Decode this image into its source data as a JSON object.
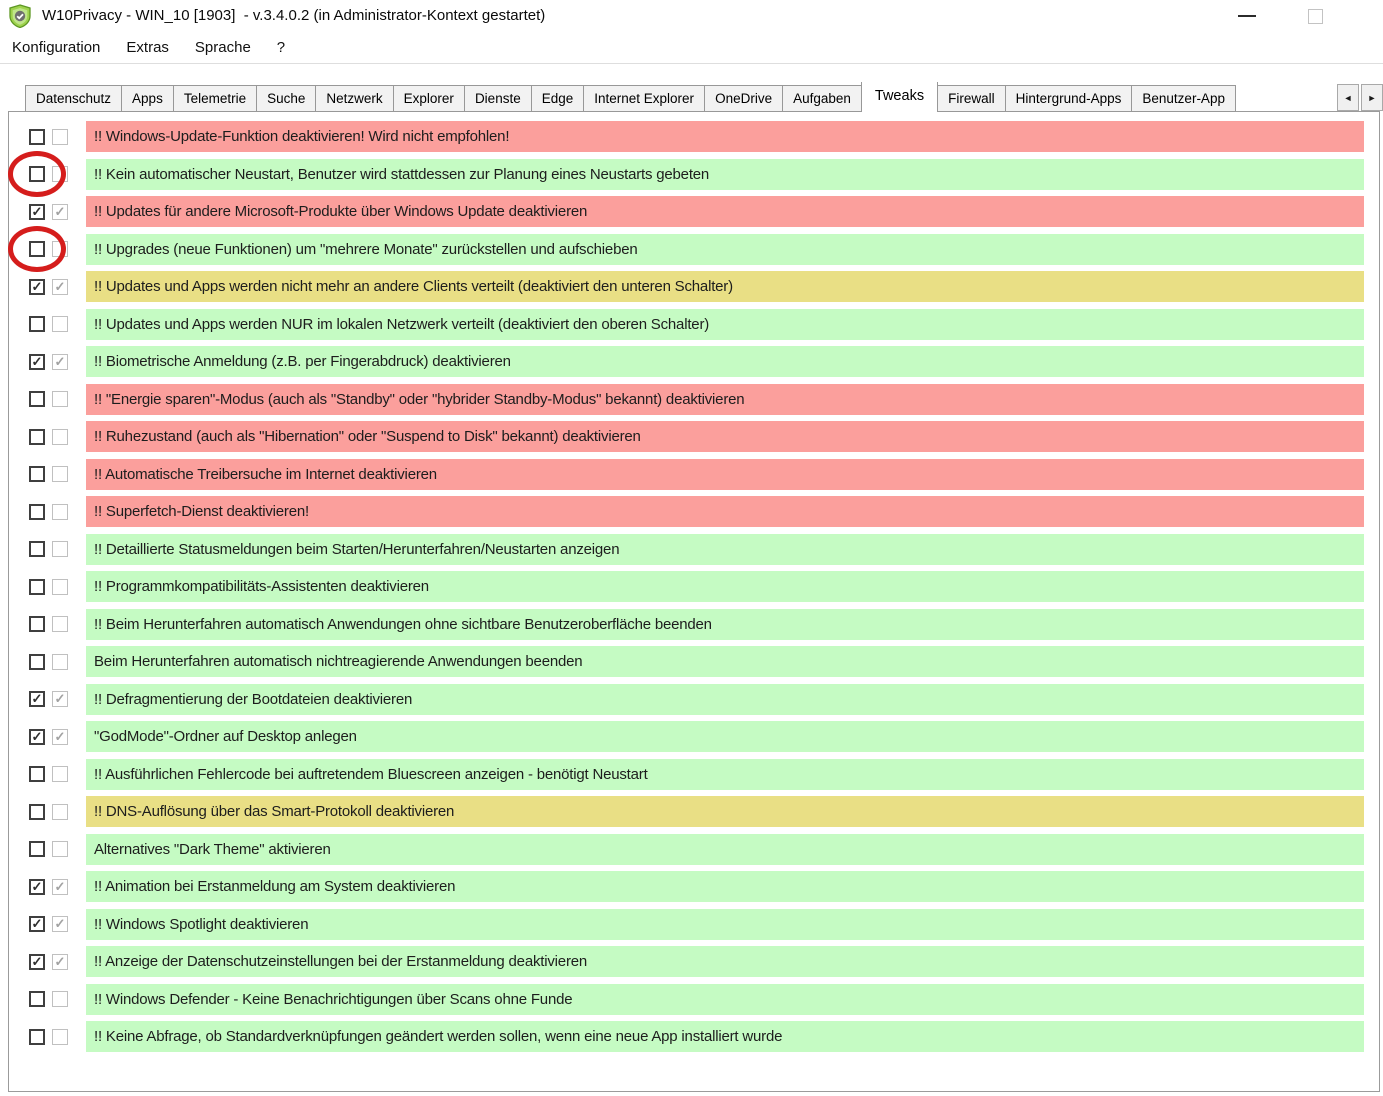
{
  "window": {
    "title": "W10Privacy - WIN_10 [1903]  - v.3.4.0.2 (in Administrator-Kontext gestartet)"
  },
  "menu": {
    "items": [
      "Konfiguration",
      "Extras",
      "Sprache",
      "?"
    ]
  },
  "tabs": {
    "items": [
      "Datenschutz",
      "Apps",
      "Telemetrie",
      "Suche",
      "Netzwerk",
      "Explorer",
      "Dienste",
      "Edge",
      "Internet Explorer",
      "OneDrive",
      "Aufgaben",
      "Tweaks",
      "Firewall",
      "Hintergrund-Apps",
      "Benutzer-App"
    ],
    "selected": "Tweaks",
    "scroll_left_glyph": "◄",
    "scroll_right_glyph": "►"
  },
  "colors": {
    "row_red": "#fb9f9c",
    "row_green": "#c5fbc3",
    "row_yellow": "#e9df85",
    "annotation_circle": "#d51d1c"
  },
  "rows": [
    {
      "label": "!! Windows-Update-Funktion deaktivieren! Wird nicht empfohlen!",
      "color": "red",
      "checked": false,
      "circled": false
    },
    {
      "label": "!! Kein automatischer Neustart, Benutzer wird stattdessen zur Planung eines Neustarts gebeten",
      "color": "green",
      "checked": false,
      "circled": true
    },
    {
      "label": "!! Updates für andere Microsoft-Produkte über Windows Update deaktivieren",
      "color": "red",
      "checked": true,
      "circled": false
    },
    {
      "label": "!! Upgrades (neue Funktionen) um \"mehrere Monate\" zurückstellen und aufschieben",
      "color": "green",
      "checked": false,
      "circled": true
    },
    {
      "label": "!! Updates und Apps werden nicht mehr an andere Clients verteilt (deaktiviert den unteren Schalter)",
      "color": "yellow",
      "checked": true,
      "circled": false
    },
    {
      "label": "!! Updates und Apps werden NUR im lokalen Netzwerk verteilt (deaktiviert den oberen Schalter)",
      "color": "green",
      "checked": false,
      "circled": false
    },
    {
      "label": "!! Biometrische Anmeldung (z.B. per Fingerabdruck) deaktivieren",
      "color": "green",
      "checked": true,
      "circled": false
    },
    {
      "label": "!! \"Energie sparen\"-Modus (auch als \"Standby\" oder \"hybrider Standby-Modus\" bekannt) deaktivieren",
      "color": "red",
      "checked": false,
      "circled": false
    },
    {
      "label": "!! Ruhezustand (auch als \"Hibernation\" oder \"Suspend to Disk\" bekannt) deaktivieren",
      "color": "red",
      "checked": false,
      "circled": false
    },
    {
      "label": "!! Automatische Treibersuche im Internet deaktivieren",
      "color": "red",
      "checked": false,
      "circled": false
    },
    {
      "label": "!! Superfetch-Dienst deaktivieren!",
      "color": "red",
      "checked": false,
      "circled": false
    },
    {
      "label": "!! Detaillierte Statusmeldungen beim Starten/Herunterfahren/Neustarten anzeigen",
      "color": "green",
      "checked": false,
      "circled": false
    },
    {
      "label": "!! Programmkompatibilitäts-Assistenten deaktivieren",
      "color": "green",
      "checked": false,
      "circled": false
    },
    {
      "label": "!! Beim Herunterfahren automatisch Anwendungen ohne sichtbare Benutzeroberfläche beenden",
      "color": "green",
      "checked": false,
      "circled": false
    },
    {
      "label": "Beim Herunterfahren automatisch nichtreagierende Anwendungen beenden",
      "color": "green",
      "checked": false,
      "circled": false
    },
    {
      "label": "!! Defragmentierung der Bootdateien deaktivieren",
      "color": "green",
      "checked": true,
      "circled": false
    },
    {
      "label": "\"GodMode\"-Ordner auf Desktop anlegen",
      "color": "green",
      "checked": true,
      "circled": false
    },
    {
      "label": "!! Ausführlichen Fehlercode bei auftretendem Bluescreen anzeigen - benötigt Neustart",
      "color": "green",
      "checked": false,
      "circled": false
    },
    {
      "label": "!! DNS-Auflösung über das Smart-Protokoll deaktivieren",
      "color": "yellow",
      "checked": false,
      "circled": false
    },
    {
      "label": "Alternatives \"Dark Theme\" aktivieren",
      "color": "green",
      "checked": false,
      "circled": false
    },
    {
      "label": "!! Animation bei Erstanmeldung am System deaktivieren",
      "color": "green",
      "checked": true,
      "circled": false
    },
    {
      "label": "!! Windows Spotlight deaktivieren",
      "color": "green",
      "checked": true,
      "circled": false
    },
    {
      "label": "!! Anzeige der Datenschutzeinstellungen bei der Erstanmeldung deaktivieren",
      "color": "green",
      "checked": true,
      "circled": false
    },
    {
      "label": "!! Windows Defender - Keine Benachrichtigungen über Scans ohne Funde",
      "color": "green",
      "checked": false,
      "circled": false
    },
    {
      "label": "!! Keine Abfrage, ob Standardverknüpfungen geändert werden sollen, wenn eine neue App installiert wurde",
      "color": "green",
      "checked": false,
      "circled": false
    }
  ]
}
